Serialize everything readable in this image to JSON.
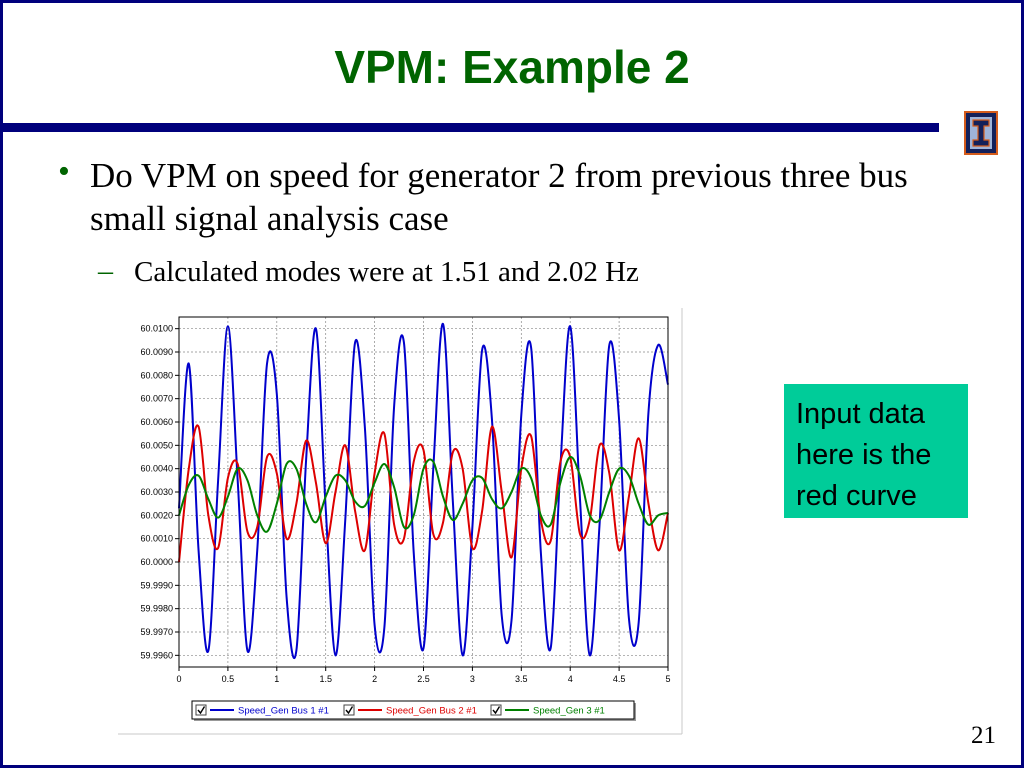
{
  "slide": {
    "title": "VPM: Example 2",
    "bullet": "Do VPM on speed for generator 2 from previous three bus small signal analysis case",
    "sub_bullet": "Calculated modes were at 1.51 and 2.02 Hz",
    "callout": "Input data here is the red curve",
    "page_number": "21"
  },
  "colors": {
    "frame": "#00007c",
    "title": "#006400",
    "callout_bg": "#00cc99"
  },
  "chart_data": {
    "type": "line",
    "x_range": [
      0,
      5
    ],
    "y_range": [
      59.9955,
      60.0105
    ],
    "x_ticks": [
      "0",
      "0.5",
      "1",
      "1.5",
      "2",
      "2.5",
      "3",
      "3.5",
      "4",
      "4.5",
      "5"
    ],
    "y_ticks": [
      "60.0100",
      "60.0090",
      "60.0080",
      "60.0070",
      "60.0060",
      "60.0050",
      "60.0040",
      "60.0030",
      "60.0020",
      "60.0010",
      "60.0000",
      "59.9990",
      "59.9980",
      "59.9970",
      "59.9960"
    ],
    "grid": true,
    "legend_position": "bottom",
    "series": [
      {
        "name": "Speed_Gen Bus 1 #1",
        "color": "#0000cc",
        "x": [
          0,
          0.1,
          0.2,
          0.3,
          0.4,
          0.5,
          0.6,
          0.7,
          0.8,
          0.9,
          1.0,
          1.1,
          1.2,
          1.3,
          1.4,
          1.5,
          1.6,
          1.7,
          1.8,
          1.9,
          2.0,
          2.1,
          2.2,
          2.3,
          2.4,
          2.5,
          2.6,
          2.7,
          2.8,
          2.9,
          3.0,
          3.1,
          3.2,
          3.3,
          3.4,
          3.5,
          3.6,
          3.7,
          3.8,
          3.9,
          4.0,
          4.1,
          4.2,
          4.3,
          4.4,
          4.5,
          4.6,
          4.7,
          4.8,
          4.9,
          5.0
        ],
        "y": [
          60.0023,
          60.0085,
          60.0005,
          59.9962,
          60.0035,
          60.0101,
          60.0035,
          59.9962,
          60.0005,
          60.0085,
          60.0072,
          59.9985,
          59.9962,
          60.0044,
          60.01,
          60.0023,
          59.996,
          60.0018,
          60.0094,
          60.0058,
          59.9973,
          59.9972,
          60.0067,
          60.0094,
          60.0004,
          59.9963,
          60.004,
          60.0102,
          60.0026,
          59.996,
          60.0015,
          60.0091,
          60.0061,
          59.9977,
          59.9975,
          60.0063,
          60.0092,
          60.0004,
          59.9963,
          60.0041,
          60.0101,
          60.0027,
          59.996,
          60.0016,
          60.0093,
          60.0061,
          59.9976,
          59.9974,
          60.0064,
          60.0093,
          60.0076
        ]
      },
      {
        "name": "Speed_Gen Bus 2 #1",
        "color": "#dd0000",
        "x": [
          0,
          0.1,
          0.2,
          0.3,
          0.4,
          0.5,
          0.6,
          0.7,
          0.8,
          0.9,
          1.0,
          1.1,
          1.2,
          1.3,
          1.4,
          1.5,
          1.6,
          1.7,
          1.8,
          1.9,
          2.0,
          2.1,
          2.2,
          2.3,
          2.4,
          2.5,
          2.6,
          2.7,
          2.8,
          2.9,
          3.0,
          3.1,
          3.2,
          3.3,
          3.4,
          3.5,
          3.6,
          3.7,
          3.8,
          3.9,
          4.0,
          4.1,
          4.2,
          4.3,
          4.4,
          4.5,
          4.6,
          4.7,
          4.8,
          4.9,
          5.0
        ],
        "y": [
          60.0,
          60.004,
          60.0058,
          60.002,
          60.0006,
          60.0036,
          60.0042,
          60.0013,
          60.0015,
          60.0045,
          60.0038,
          60.001,
          60.0025,
          60.0052,
          60.0034,
          60.0008,
          60.003,
          60.005,
          60.0022,
          60.0005,
          60.0038,
          60.0055,
          60.0016,
          60.001,
          60.0043,
          60.0048,
          60.0012,
          60.0017,
          60.0047,
          60.004,
          60.0006,
          60.0022,
          60.0058,
          60.003,
          60.0002,
          60.004,
          60.0054,
          60.0018,
          60.0009,
          60.0043,
          60.0045,
          60.0012,
          60.0018,
          60.005,
          60.0038,
          60.0005,
          60.0028,
          60.0053,
          60.0025,
          60.0005,
          60.0021
        ]
      },
      {
        "name": "Speed_Gen 3 #1",
        "color": "#008000",
        "x": [
          0,
          0.1,
          0.2,
          0.3,
          0.4,
          0.5,
          0.6,
          0.7,
          0.8,
          0.9,
          1.0,
          1.1,
          1.2,
          1.3,
          1.4,
          1.5,
          1.6,
          1.7,
          1.8,
          1.9,
          2.0,
          2.1,
          2.2,
          2.3,
          2.4,
          2.5,
          2.6,
          2.7,
          2.8,
          2.9,
          3.0,
          3.1,
          3.2,
          3.3,
          3.4,
          3.5,
          3.6,
          3.7,
          3.8,
          3.9,
          4.0,
          4.1,
          4.2,
          4.3,
          4.4,
          4.5,
          4.6,
          4.7,
          4.8,
          4.9,
          5.0
        ],
        "y": [
          60.002,
          60.0033,
          60.0037,
          60.0027,
          60.0019,
          60.0028,
          60.004,
          60.0035,
          60.002,
          60.0013,
          60.0025,
          60.0042,
          60.004,
          60.0025,
          60.0017,
          60.0028,
          60.0037,
          60.0035,
          60.0026,
          60.0024,
          60.0034,
          60.0042,
          60.0032,
          60.0015,
          60.002,
          60.004,
          60.0043,
          60.0028,
          60.0018,
          60.0025,
          60.0035,
          60.0036,
          60.0027,
          60.0023,
          60.003,
          60.004,
          60.0036,
          60.002,
          60.0016,
          60.0034,
          60.0045,
          60.0037,
          60.002,
          60.0018,
          60.003,
          60.004,
          60.0037,
          60.0025,
          60.0016,
          60.002,
          60.0021
        ]
      }
    ]
  }
}
